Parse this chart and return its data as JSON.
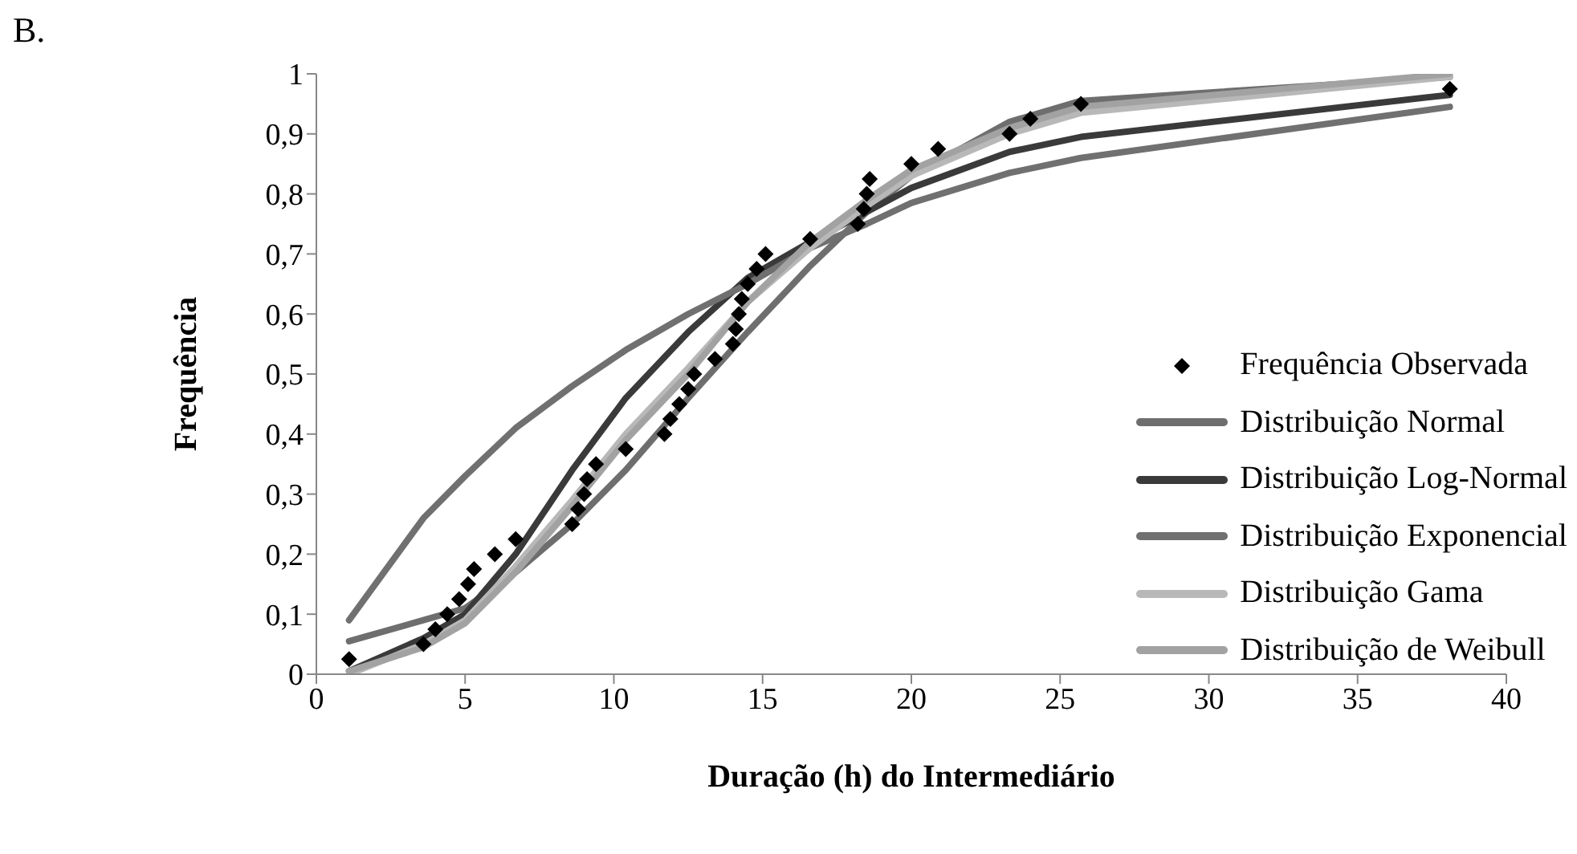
{
  "chart_data": {
    "type": "line",
    "xlabel": "Duração (h) do Intermediário",
    "ylabel": "Frequência",
    "annotations": [
      "B."
    ],
    "xlim": [
      0,
      40
    ],
    "xticks": [
      0,
      5,
      10,
      15,
      20,
      25,
      30,
      35,
      40
    ],
    "ylim": [
      0,
      1
    ],
    "yticks": [
      0,
      {
        "value": 0.1,
        "label": "0,1"
      },
      {
        "value": 0.2,
        "label": "0,2"
      },
      {
        "value": 0.3,
        "label": "0,3"
      },
      {
        "value": 0.4,
        "label": "0,4"
      },
      {
        "value": 0.5,
        "label": "0,5"
      },
      {
        "value": 0.6,
        "label": "0,6"
      },
      {
        "value": 0.7,
        "label": "0,7"
      },
      {
        "value": 0.8,
        "label": "0,8"
      },
      {
        "value": 0.9,
        "label": "0,9"
      },
      1
    ],
    "grid": false,
    "legend": "bottom right",
    "series": [
      {
        "name": "Frequência Observada",
        "type": "scatter",
        "marker": "diamond",
        "color": "#000000",
        "x": [
          1.1,
          3.6,
          4,
          4.4,
          4.8,
          5.1,
          5.3,
          6,
          6.7,
          8.6,
          8.8,
          9,
          9.1,
          9.4,
          10.4,
          11.7,
          11.9,
          12.2,
          12.5,
          12.7,
          13.4,
          14,
          14.1,
          14.2,
          14.3,
          14.5,
          14.8,
          15.1,
          16.6,
          18.2,
          18.4,
          18.5,
          18.6,
          20,
          20.9,
          23.3,
          24,
          25.7,
          38.1
        ],
        "values": [
          0.025,
          0.05,
          0.075,
          0.1,
          0.125,
          0.15,
          0.175,
          0.2,
          0.225,
          0.25,
          0.275,
          0.3,
          0.325,
          0.35,
          0.375,
          0.4,
          0.425,
          0.45,
          0.475,
          0.5,
          0.525,
          0.55,
          0.575,
          0.6,
          0.625,
          0.65,
          0.675,
          0.7,
          0.725,
          0.75,
          0.775,
          0.8,
          0.825,
          0.85,
          0.875,
          0.9,
          0.925,
          0.95,
          0.975
        ]
      },
      {
        "name": "Distribuição Normal",
        "type": "line",
        "color": "#6e6e6e",
        "x": [
          1.1,
          3.6,
          5,
          6.7,
          8.6,
          10.4,
          12.5,
          14.5,
          16.6,
          18.5,
          20,
          23.3,
          25.7,
          38.1
        ],
        "values": [
          0.055,
          0.09,
          0.11,
          0.17,
          0.25,
          0.34,
          0.46,
          0.57,
          0.68,
          0.77,
          0.83,
          0.92,
          0.955,
          0.995
        ]
      },
      {
        "name": "Distribuição Log-Normal",
        "type": "line",
        "color": "#3a3a3a",
        "x": [
          1.1,
          3.6,
          5,
          6.7,
          8.6,
          10.4,
          12.5,
          14.5,
          16.6,
          18.5,
          20,
          23.3,
          25.7,
          38.1
        ],
        "values": [
          0.005,
          0.06,
          0.1,
          0.2,
          0.34,
          0.46,
          0.57,
          0.66,
          0.72,
          0.77,
          0.81,
          0.87,
          0.895,
          0.965
        ]
      },
      {
        "name": "Distribuição Exponencial",
        "type": "line",
        "color": "#707070",
        "x": [
          1.1,
          3.6,
          5,
          6.7,
          8.6,
          10.4,
          12.5,
          14.5,
          16.6,
          18.5,
          20,
          23.3,
          25.7,
          38.1
        ],
        "values": [
          0.09,
          0.26,
          0.33,
          0.41,
          0.48,
          0.54,
          0.6,
          0.65,
          0.71,
          0.75,
          0.785,
          0.835,
          0.86,
          0.945
        ]
      },
      {
        "name": "Distribuição Gama",
        "type": "line",
        "color": "#b8b8b8",
        "x": [
          1.1,
          3.6,
          5,
          6.7,
          8.6,
          10.4,
          12.5,
          14.5,
          16.6,
          18.5,
          20,
          23.3,
          25.7,
          38.1
        ],
        "values": [
          0,
          0.05,
          0.09,
          0.18,
          0.29,
          0.4,
          0.51,
          0.62,
          0.71,
          0.78,
          0.83,
          0.9,
          0.935,
          0.995
        ]
      },
      {
        "name": "Distribuição de Weibull",
        "type": "line",
        "color": "#a2a2a2",
        "x": [
          1.1,
          3.6,
          5,
          6.7,
          8.6,
          10.4,
          12.5,
          14.5,
          16.6,
          18.5,
          20,
          23.3,
          25.7,
          38.1
        ],
        "values": [
          0.005,
          0.045,
          0.085,
          0.17,
          0.28,
          0.39,
          0.5,
          0.62,
          0.72,
          0.79,
          0.84,
          0.91,
          0.945,
          1.0
        ]
      }
    ]
  }
}
